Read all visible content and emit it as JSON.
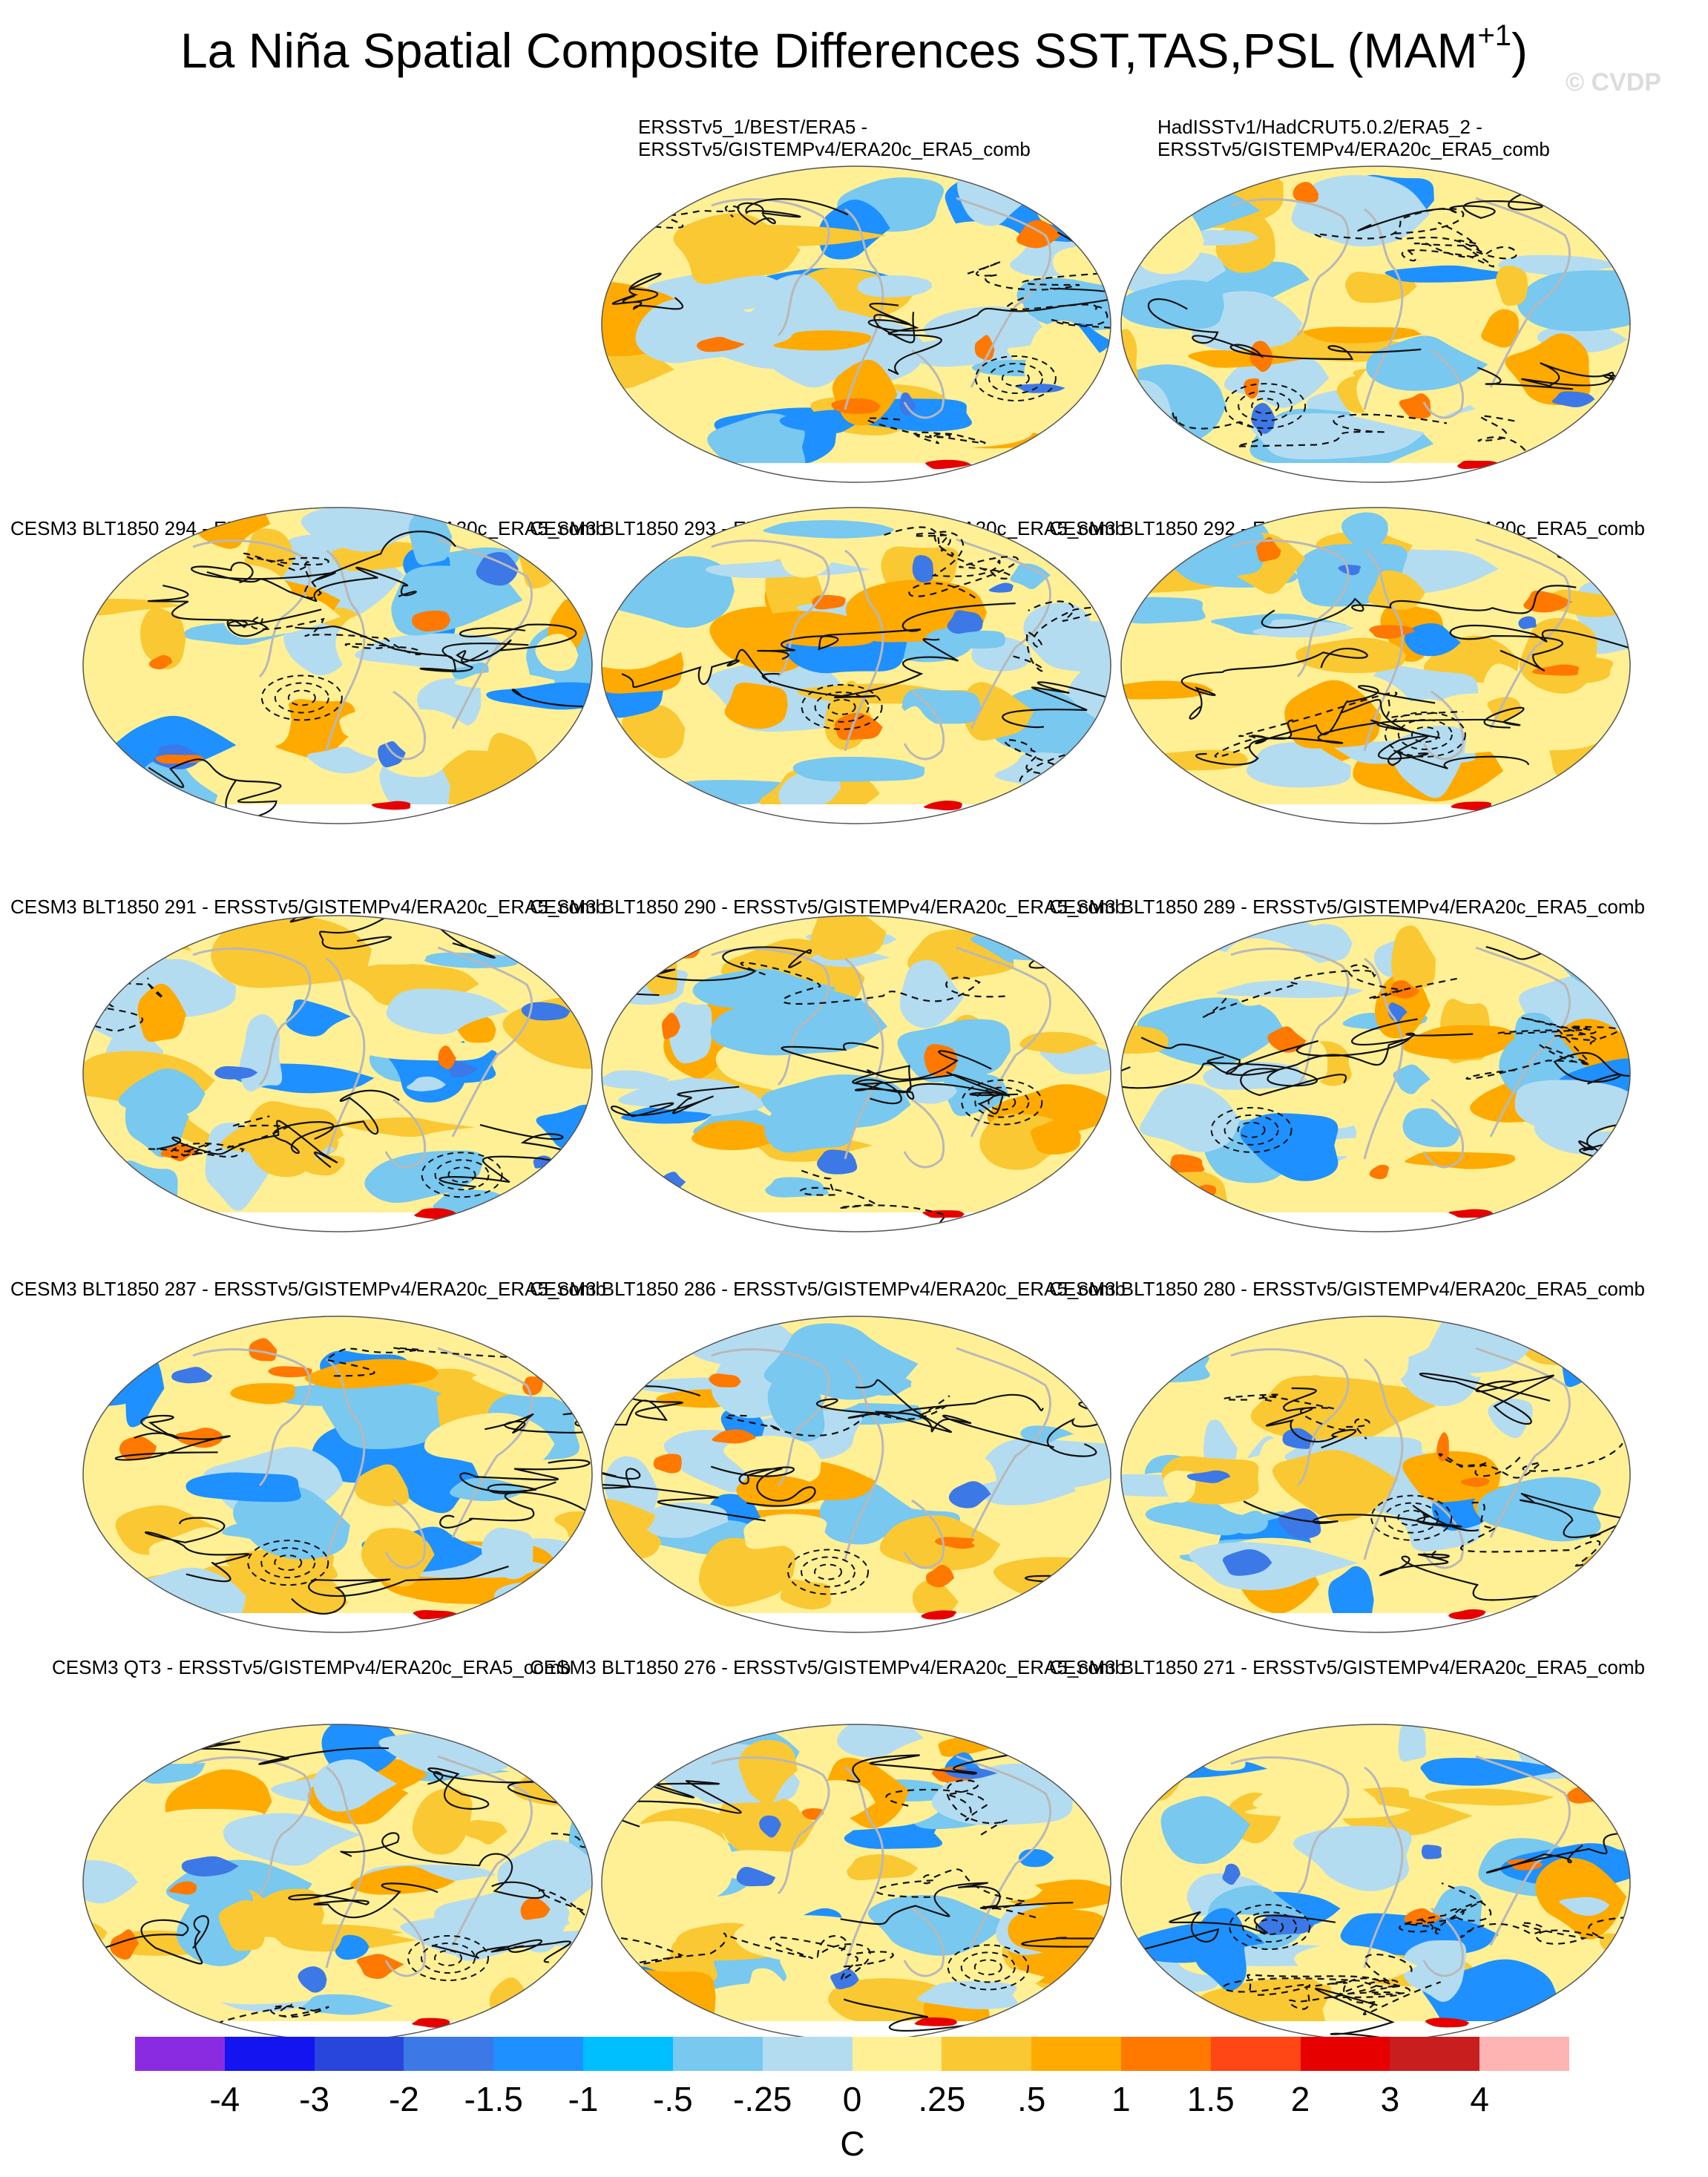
{
  "title": {
    "main": "La Niña Spatial Composite Differences SST,TAS,PSL (MAM",
    "sup": "+1",
    "close": ")"
  },
  "watermark": "© CVDP",
  "panels": [
    {
      "lines": [
        "ERSSTv5_1/BEST/ERA5 -",
        "ERSSTv5/GISTEMPv4/ERA20c_ERA5_comb"
      ],
      "seed": 11
    },
    {
      "lines": [
        "HadISSTv1/HadCRUT5.0.2/ERA5_2 -",
        "ERSSTv5/GISTEMPv4/ERA20c_ERA5_comb"
      ],
      "seed": 23
    },
    {
      "lines": [
        "CESM3 BLT1850 294 - ERSSTv5/GISTEMPv4/ERA20c_ERA5_comb"
      ],
      "seed": 37
    },
    {
      "lines": [
        "CESM3 BLT1850 293 - ERSSTv5/GISTEMPv4/ERA20c_ERA5_comb"
      ],
      "seed": 41
    },
    {
      "lines": [
        "CESM3 BLT1850 292 - ERSSTv5/GISTEMPv4/ERA20c_ERA5_comb"
      ],
      "seed": 53
    },
    {
      "lines": [
        "CESM3 BLT1850 291 - ERSSTv5/GISTEMPv4/ERA20c_ERA5_comb"
      ],
      "seed": 67
    },
    {
      "lines": [
        "CESM3 BLT1850 290 - ERSSTv5/GISTEMPv4/ERA20c_ERA5_comb"
      ],
      "seed": 71
    },
    {
      "lines": [
        "CESM3 BLT1850 289 - ERSSTv5/GISTEMPv4/ERA20c_ERA5_comb"
      ],
      "seed": 83
    },
    {
      "lines": [
        "CESM3 BLT1850 287 - ERSSTv5/GISTEMPv4/ERA20c_ERA5_comb"
      ],
      "seed": 97
    },
    {
      "lines": [
        "CESM3 BLT1850 286 - ERSSTv5/GISTEMPv4/ERA20c_ERA5_comb"
      ],
      "seed": 101
    },
    {
      "lines": [
        "CESM3 BLT1850 280 - ERSSTv5/GISTEMPv4/ERA20c_ERA5_comb"
      ],
      "seed": 113
    },
    {
      "lines": [
        "CESM3 QT3 - ERSSTv5/GISTEMPv4/ERA20c_ERA5_comb"
      ],
      "seed": 127
    },
    {
      "lines": [
        "CESM3 BLT1850 276 - ERSSTv5/GISTEMPv4/ERA20c_ERA5_comb"
      ],
      "seed": 131
    },
    {
      "lines": [
        "CESM3 BLT1850 271 - ERSSTv5/GISTEMPv4/ERA20c_ERA5_comb"
      ],
      "seed": 149
    }
  ],
  "colorbar": {
    "colors": [
      "#8a2be2",
      "#1414f0",
      "#2846dc",
      "#3c78e6",
      "#1e90ff",
      "#00bfff",
      "#78c8f0",
      "#b4dcf0",
      "#fff096",
      "#fac832",
      "#ffaa00",
      "#ff7800",
      "#ff4614",
      "#e60000",
      "#c81e1e",
      "#ffb4b4"
    ],
    "ticks": [
      "-4",
      "-3",
      "-2",
      "-1.5",
      "-1",
      "-.5",
      "-.25",
      "0",
      ".25",
      ".5",
      "1",
      "1.5",
      "2",
      "3",
      "4"
    ],
    "units": "C"
  }
}
